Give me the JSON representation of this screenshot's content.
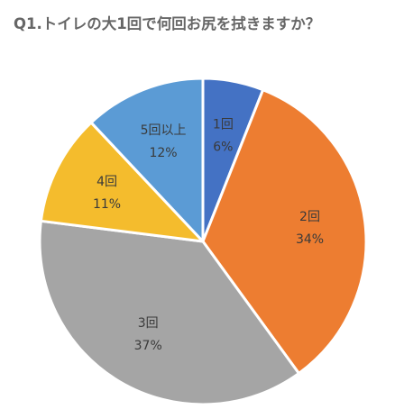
{
  "chart_data": {
    "type": "pie",
    "title": "Q1.トイレの大1回で何回お尻を拭きますか？",
    "slices": [
      {
        "label": "1回",
        "value": 6,
        "value_label": "6%",
        "color": "#4472c4"
      },
      {
        "label": "2回",
        "value": 34,
        "value_label": "34%",
        "color": "#ed7d31"
      },
      {
        "label": "3回",
        "value": 37,
        "value_label": "37%",
        "color": "#a5a5a5"
      },
      {
        "label": "4回",
        "value": 11,
        "value_label": "11%",
        "color": "#f4bc2d"
      },
      {
        "label": "5回以上",
        "value": 12,
        "value_label": "12%",
        "color": "#5b9bd5"
      }
    ]
  }
}
